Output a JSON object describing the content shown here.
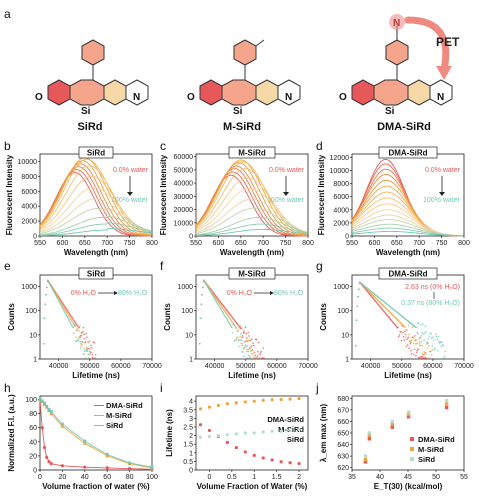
{
  "panels": {
    "a": {
      "label": "a",
      "molecules": [
        "SiRd",
        "M-SiRd",
        "DMA-SiRd"
      ],
      "pet_label": "PET",
      "atoms": {
        "o": "O",
        "si": "Si",
        "n": "N"
      }
    },
    "b": {
      "label": "b",
      "title": "SiRd",
      "ann_top": "0.0% water",
      "ann_bottom": "100% water"
    },
    "c": {
      "label": "c",
      "title": "M-SiRd",
      "ann_top": "0.0% water",
      "ann_bottom": "100% water"
    },
    "d": {
      "label": "d",
      "title": "DMA-SiRd",
      "ann_top": "0.0% water",
      "ann_bottom": "100% water"
    },
    "e": {
      "label": "e",
      "title": "SiRd",
      "ann_left": "0% H₂O",
      "ann_right": "80% H₂O"
    },
    "f": {
      "label": "f",
      "title": "M-SiRd",
      "ann_left": "0% H₂O",
      "ann_right": "80% H₂O"
    },
    "g": {
      "label": "g",
      "title": "DMA-SiRd",
      "ann_top": "2.63 ns (0% H₂O)",
      "ann_bottom": "0.37 ns (80% H₂O)"
    },
    "h": {
      "label": "h"
    },
    "i": {
      "label": "i"
    },
    "j": {
      "label": "j"
    }
  },
  "colors": {
    "red": "#e8575a",
    "orange": "#f2a43a",
    "teal": "#6fc9b5",
    "salmon": "#f4a58c",
    "pale": "#f7d9a8"
  },
  "chart_data": [
    {
      "id": "b",
      "type": "line",
      "xlabel": "Wavelength (nm)",
      "ylabel": "Fluorescent Intensity",
      "xlim": [
        550,
        800
      ],
      "ylim": [
        0,
        11000
      ],
      "xticks": [
        550,
        600,
        650,
        700,
        750,
        800
      ],
      "yticks": [
        0,
        2000,
        4000,
        6000,
        8000,
        10000
      ],
      "peaks": [
        {
          "x": 628,
          "y": 8500
        },
        {
          "x": 632,
          "y": 8900
        },
        {
          "x": 636,
          "y": 9300
        },
        {
          "x": 640,
          "y": 9700
        },
        {
          "x": 645,
          "y": 10100
        },
        {
          "x": 650,
          "y": 10500
        },
        {
          "x": 655,
          "y": 10300
        },
        {
          "x": 660,
          "y": 9400
        },
        {
          "x": 665,
          "y": 8000
        },
        {
          "x": 670,
          "y": 6500
        },
        {
          "x": 675,
          "y": 5000
        },
        {
          "x": 680,
          "y": 3700
        },
        {
          "x": 690,
          "y": 2500
        },
        {
          "x": 695,
          "y": 1600
        },
        {
          "x": 700,
          "y": 800
        }
      ]
    },
    {
      "id": "c",
      "type": "line",
      "xlabel": "Wavelength (nm)",
      "ylabel": "Fluorescent Intensity",
      "xlim": [
        550,
        800
      ],
      "ylim": [
        0,
        62000
      ],
      "xticks": [
        550,
        600,
        650,
        700,
        750,
        800
      ],
      "yticks": [
        0,
        10000,
        20000,
        30000,
        40000,
        50000,
        60000
      ],
      "peaks": [
        {
          "x": 628,
          "y": 46000
        },
        {
          "x": 632,
          "y": 48500
        },
        {
          "x": 636,
          "y": 51000
        },
        {
          "x": 640,
          "y": 53000
        },
        {
          "x": 645,
          "y": 55500
        },
        {
          "x": 650,
          "y": 57500
        },
        {
          "x": 655,
          "y": 56000
        },
        {
          "x": 660,
          "y": 51000
        },
        {
          "x": 665,
          "y": 44000
        },
        {
          "x": 670,
          "y": 36000
        },
        {
          "x": 675,
          "y": 28000
        },
        {
          "x": 680,
          "y": 21000
        },
        {
          "x": 690,
          "y": 14000
        },
        {
          "x": 695,
          "y": 9000
        },
        {
          "x": 700,
          "y": 5000
        }
      ]
    },
    {
      "id": "d",
      "type": "line",
      "xlabel": "Wavelength (nm)",
      "ylabel": "Fluorescent Intensity",
      "xlim": [
        550,
        800
      ],
      "ylim": [
        0,
        12500
      ],
      "xticks": [
        550,
        600,
        650,
        700,
        750,
        800
      ],
      "yticks": [
        0,
        2000,
        4000,
        6000,
        8000,
        10000,
        12000
      ],
      "peaks": [
        {
          "x": 625,
          "y": 11700
        },
        {
          "x": 625,
          "y": 11000
        },
        {
          "x": 626,
          "y": 10200
        },
        {
          "x": 626,
          "y": 9400
        },
        {
          "x": 627,
          "y": 8500
        },
        {
          "x": 627,
          "y": 7600
        },
        {
          "x": 628,
          "y": 6700
        },
        {
          "x": 628,
          "y": 5800
        },
        {
          "x": 629,
          "y": 4900
        },
        {
          "x": 630,
          "y": 4000
        },
        {
          "x": 631,
          "y": 3200
        },
        {
          "x": 632,
          "y": 2500
        },
        {
          "x": 633,
          "y": 1800
        },
        {
          "x": 634,
          "y": 1200
        },
        {
          "x": 635,
          "y": 700
        }
      ]
    },
    {
      "id": "e",
      "type": "scatter",
      "xlabel": "Lifetime (ns)",
      "ylabel": "Counts",
      "xlim": [
        34000,
        70000
      ],
      "ylog": true,
      "ylim": [
        1,
        3000
      ],
      "xticks": [
        40000,
        50000,
        60000,
        70000
      ],
      "yticks": [
        1,
        10,
        100,
        1000
      ],
      "peak_x": 36500,
      "peak_y": 1800,
      "decays": [
        {
          "tau": 2200,
          "end": 52000
        },
        {
          "tau": 2000,
          "end": 51000
        },
        {
          "tau": 1800,
          "end": 50000
        }
      ]
    },
    {
      "id": "f",
      "type": "scatter",
      "xlabel": "Lifetime (ns)",
      "ylabel": "Counts",
      "xlim": [
        34000,
        70000
      ],
      "ylog": true,
      "ylim": [
        1,
        3000
      ],
      "xticks": [
        40000,
        50000,
        60000,
        70000
      ],
      "yticks": [
        1,
        10,
        100,
        1000
      ],
      "peak_x": 36500,
      "peak_y": 1800,
      "decays": [
        {
          "tau": 2600,
          "end": 56000
        },
        {
          "tau": 2300,
          "end": 54000
        },
        {
          "tau": 2000,
          "end": 52000
        }
      ]
    },
    {
      "id": "g",
      "type": "scatter",
      "xlabel": "Lifetime (ns)",
      "ylabel": "Counts",
      "xlim": [
        34000,
        70000
      ],
      "ylog": true,
      "ylim": [
        1,
        3000
      ],
      "xticks": [
        40000,
        50000,
        60000,
        70000
      ],
      "yticks": [
        1,
        10,
        100,
        1000
      ],
      "peak_x": 36500,
      "peak_y": 1500,
      "decays": [
        {
          "tau": 2800,
          "end": 58000
        },
        {
          "tau": 3400,
          "end": 60000
        },
        {
          "tau": 4200,
          "end": 64000
        }
      ]
    },
    {
      "id": "h",
      "type": "line",
      "xlabel": "Volume fraction of water (%)",
      "ylabel": "Normalized F.I. (a.u.)",
      "xlim": [
        0,
        100
      ],
      "ylim": [
        0,
        105
      ],
      "xticks": [
        0,
        20,
        40,
        60,
        80,
        100
      ],
      "yticks": [
        0,
        20,
        40,
        60,
        80,
        100
      ],
      "legend": "top-right",
      "x": [
        0,
        2,
        4,
        6,
        8,
        10,
        20,
        40,
        60,
        80,
        100
      ],
      "series": [
        {
          "name": "DMA-SiRd",
          "color": "#e8575a",
          "values": [
            100,
            60,
            32,
            18,
            12,
            9,
            6,
            4,
            3,
            2,
            1
          ]
        },
        {
          "name": "M-SiRd",
          "color": "#f2a43a",
          "values": [
            100,
            97,
            93,
            89,
            84,
            80,
            62,
            38,
            20,
            9,
            3
          ]
        },
        {
          "name": "SiRd",
          "color": "#6fc9b5",
          "values": [
            100,
            98,
            95,
            90,
            86,
            83,
            65,
            41,
            22,
            10,
            4
          ]
        }
      ]
    },
    {
      "id": "i",
      "type": "scatter",
      "xlabel": "Volume Fraction of Water (%)",
      "ylabel": "Lifetime (ns)",
      "xlim": [
        -0.3,
        2.2
      ],
      "ylim": [
        0,
        4.3
      ],
      "xticks": [
        0.0,
        0.5,
        1.0,
        1.5,
        2.0
      ],
      "yticks": [
        0.0,
        0.5,
        1.0,
        1.5,
        2.0,
        2.5,
        3.0,
        3.5,
        4.0
      ],
      "legend": "right",
      "x": [
        -0.2,
        0.0,
        0.2,
        0.4,
        0.6,
        0.8,
        1.0,
        1.2,
        1.4,
        1.6,
        1.8,
        2.0
      ],
      "series": [
        {
          "name": "DMA-SiRd",
          "color": "#e8575a",
          "values": [
            2.63,
            2.3,
            1.95,
            1.6,
            1.3,
            1.05,
            0.85,
            0.7,
            0.58,
            0.48,
            0.42,
            0.37
          ]
        },
        {
          "name": "M-SiRd",
          "color": "#f2a43a",
          "values": [
            3.55,
            3.65,
            3.75,
            3.85,
            3.9,
            3.95,
            4.0,
            4.05,
            4.08,
            4.1,
            4.12,
            4.15
          ]
        },
        {
          "name": "SiRd",
          "color": "#b9dcd2",
          "values": [
            1.9,
            1.95,
            2.0,
            2.05,
            2.1,
            2.15,
            2.15,
            2.2,
            2.25,
            2.25,
            2.3,
            2.35
          ]
        }
      ]
    },
    {
      "id": "j",
      "type": "scatter",
      "xlabel": "E_T(30) (kcal/mol)",
      "ylabel": "λ_em max (nm)",
      "xlim": [
        35,
        55
      ],
      "ylim": [
        618,
        682
      ],
      "xticks": [
        35,
        40,
        45,
        50,
        55
      ],
      "yticks": [
        620,
        630,
        640,
        650,
        660,
        670,
        680
      ],
      "legend": "bottom-right",
      "x": [
        37.4,
        38.1,
        42.2,
        45.1,
        51.9
      ],
      "series": [
        {
          "name": "DMA-SiRd",
          "color": "#e8575a",
          "values": [
            625,
            645,
            655,
            664,
            672
          ]
        },
        {
          "name": "M-SiRd",
          "color": "#f2a43a",
          "values": [
            627,
            648,
            658,
            666,
            675
          ]
        },
        {
          "name": "SiRd",
          "color": "#b9dcd2",
          "values": [
            630,
            650,
            660,
            668,
            678
          ]
        }
      ]
    }
  ]
}
